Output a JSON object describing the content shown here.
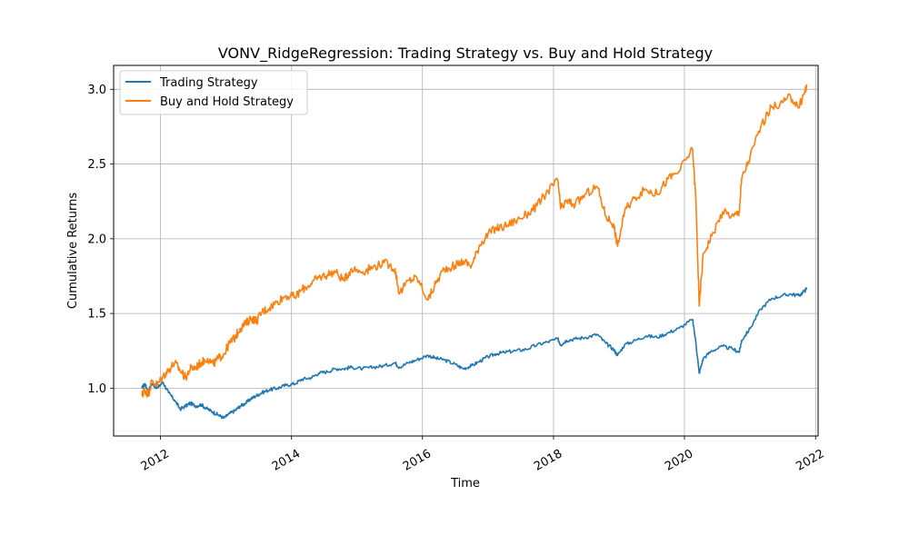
{
  "chart_data": {
    "type": "line",
    "title": "VONV_RidgeRegression: Trading Strategy vs. Buy and Hold Strategy",
    "xlabel": "Time",
    "ylabel": "Cumulative Returns",
    "xlim": [
      "2011-04-15",
      "2022-01-15"
    ],
    "ylim": [
      0.68,
      3.16
    ],
    "x_ticks": [
      "2012",
      "2014",
      "2016",
      "2018",
      "2020",
      "2022"
    ],
    "y_ticks": [
      "1.0",
      "1.5",
      "2.0",
      "2.5",
      "3.0"
    ],
    "grid": true,
    "legend_position": "upper-left",
    "series": [
      {
        "name": "Trading Strategy",
        "color": "#1f77b4",
        "x": [
          "2011-09-20",
          "2011-10-05",
          "2011-10-25",
          "2011-11-15",
          "2011-12-15",
          "2012-01-15",
          "2012-02-15",
          "2012-03-20",
          "2012-04-20",
          "2012-05-20",
          "2012-06-15",
          "2012-07-15",
          "2012-08-15",
          "2012-09-20",
          "2012-10-20",
          "2012-11-20",
          "2012-12-20",
          "2013-01-20",
          "2013-02-20",
          "2013-03-20",
          "2013-04-20",
          "2013-05-20",
          "2013-06-20",
          "2013-07-20",
          "2013-09-01",
          "2013-10-15",
          "2013-12-01",
          "2014-01-20",
          "2014-03-01",
          "2014-04-20",
          "2014-06-01",
          "2014-07-20",
          "2014-09-01",
          "2014-10-20",
          "2014-12-01",
          "2015-02-01",
          "2015-04-01",
          "2015-06-01",
          "2015-08-01",
          "2015-08-25",
          "2015-10-15",
          "2015-12-01",
          "2016-02-01",
          "2016-03-15",
          "2016-05-01",
          "2016-07-01",
          "2016-08-15",
          "2016-10-01",
          "2016-11-15",
          "2016-12-31",
          "2017-02-15",
          "2017-04-01",
          "2017-06-01",
          "2017-08-01",
          "2017-10-01",
          "2017-12-01",
          "2018-01-25",
          "2018-02-10",
          "2018-03-15",
          "2018-05-01",
          "2018-07-01",
          "2018-09-01",
          "2018-10-20",
          "2018-12-01",
          "2018-12-24",
          "2019-02-01",
          "2019-04-01",
          "2019-06-01",
          "2019-08-01",
          "2019-10-01",
          "2019-12-01",
          "2020-02-15",
          "2020-03-05",
          "2020-03-23",
          "2020-04-15",
          "2020-06-01",
          "2020-08-01",
          "2020-10-01",
          "2020-11-01",
          "2020-11-15",
          "2021-01-01",
          "2021-03-01",
          "2021-05-01",
          "2021-07-01",
          "2021-08-15",
          "2021-09-30",
          "2021-11-01",
          "2021-11-12"
        ],
        "y": [
          1.0,
          1.03,
          0.98,
          1.03,
          1.0,
          1.04,
          0.97,
          0.92,
          0.86,
          0.88,
          0.9,
          0.88,
          0.89,
          0.86,
          0.84,
          0.82,
          0.8,
          0.83,
          0.85,
          0.88,
          0.9,
          0.93,
          0.95,
          0.97,
          0.99,
          1.0,
          1.02,
          1.03,
          1.06,
          1.07,
          1.1,
          1.11,
          1.13,
          1.13,
          1.14,
          1.13,
          1.14,
          1.15,
          1.17,
          1.14,
          1.17,
          1.19,
          1.22,
          1.2,
          1.19,
          1.16,
          1.13,
          1.15,
          1.18,
          1.21,
          1.23,
          1.24,
          1.25,
          1.26,
          1.29,
          1.31,
          1.33,
          1.29,
          1.32,
          1.33,
          1.34,
          1.36,
          1.3,
          1.26,
          1.22,
          1.29,
          1.32,
          1.35,
          1.34,
          1.37,
          1.4,
          1.46,
          1.3,
          1.1,
          1.2,
          1.25,
          1.28,
          1.26,
          1.24,
          1.32,
          1.4,
          1.53,
          1.6,
          1.62,
          1.63,
          1.62,
          1.65,
          1.67
        ]
      },
      {
        "name": "Buy and Hold Strategy",
        "color": "#ff7f0e",
        "x": [
          "2011-09-20",
          "2011-10-05",
          "2011-10-25",
          "2011-11-15",
          "2011-12-15",
          "2012-01-15",
          "2012-02-15",
          "2012-03-20",
          "2012-04-20",
          "2012-05-20",
          "2012-06-15",
          "2012-07-15",
          "2012-08-15",
          "2012-09-20",
          "2012-10-20",
          "2012-11-20",
          "2012-12-20",
          "2013-01-20",
          "2013-02-20",
          "2013-03-20",
          "2013-04-20",
          "2013-05-20",
          "2013-06-20",
          "2013-07-20",
          "2013-09-01",
          "2013-10-15",
          "2013-12-01",
          "2014-01-20",
          "2014-03-01",
          "2014-04-20",
          "2014-06-01",
          "2014-07-20",
          "2014-09-01",
          "2014-10-20",
          "2014-12-01",
          "2015-02-01",
          "2015-04-01",
          "2015-06-01",
          "2015-08-01",
          "2015-08-25",
          "2015-10-15",
          "2015-12-01",
          "2016-02-01",
          "2016-03-15",
          "2016-05-01",
          "2016-07-01",
          "2016-08-15",
          "2016-10-01",
          "2016-11-15",
          "2016-12-31",
          "2017-02-15",
          "2017-04-01",
          "2017-06-01",
          "2017-08-01",
          "2017-10-01",
          "2017-12-01",
          "2018-01-25",
          "2018-02-10",
          "2018-03-15",
          "2018-05-01",
          "2018-07-01",
          "2018-09-01",
          "2018-10-20",
          "2018-12-01",
          "2018-12-24",
          "2019-02-01",
          "2019-04-01",
          "2019-06-01",
          "2019-08-01",
          "2019-10-01",
          "2019-12-01",
          "2020-02-15",
          "2020-03-05",
          "2020-03-23",
          "2020-04-15",
          "2020-06-01",
          "2020-08-01",
          "2020-10-01",
          "2020-11-01",
          "2020-11-15",
          "2021-01-01",
          "2021-03-01",
          "2021-05-01",
          "2021-07-01",
          "2021-08-15",
          "2021-09-30",
          "2021-11-01",
          "2021-11-12"
        ],
        "y": [
          0.95,
          0.99,
          0.96,
          1.05,
          1.02,
          1.08,
          1.12,
          1.17,
          1.12,
          1.07,
          1.13,
          1.14,
          1.17,
          1.2,
          1.16,
          1.2,
          1.23,
          1.3,
          1.34,
          1.4,
          1.43,
          1.47,
          1.45,
          1.51,
          1.54,
          1.58,
          1.62,
          1.61,
          1.66,
          1.7,
          1.74,
          1.76,
          1.78,
          1.72,
          1.8,
          1.78,
          1.81,
          1.84,
          1.8,
          1.63,
          1.72,
          1.74,
          1.59,
          1.7,
          1.8,
          1.82,
          1.85,
          1.82,
          1.96,
          2.03,
          2.07,
          2.08,
          2.12,
          2.16,
          2.22,
          2.32,
          2.39,
          2.2,
          2.25,
          2.23,
          2.3,
          2.35,
          2.15,
          2.1,
          1.95,
          2.18,
          2.28,
          2.33,
          2.3,
          2.4,
          2.45,
          2.6,
          2.25,
          1.55,
          1.9,
          2.02,
          2.18,
          2.15,
          2.18,
          2.4,
          2.55,
          2.75,
          2.88,
          2.91,
          2.95,
          2.88,
          2.98,
          3.02
        ]
      }
    ]
  }
}
